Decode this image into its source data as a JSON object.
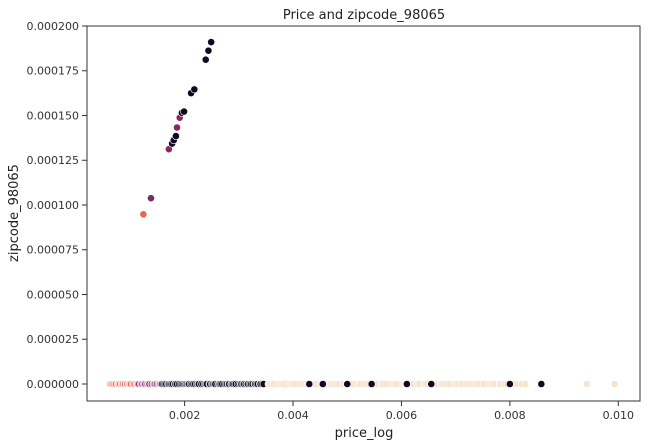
{
  "chart_data": {
    "type": "scatter",
    "title": "Price and zipcode_98065",
    "xlabel": "price_log",
    "ylabel": "zipcode_98065",
    "xlim": [
      0.0002,
      0.0104
    ],
    "ylim": [
      -9.5e-06,
      0.0002
    ],
    "xticks": [
      0.002,
      0.004,
      0.006,
      0.008,
      0.01
    ],
    "xtick_labels": [
      "0.002",
      "0.004",
      "0.006",
      "0.008",
      "0.010"
    ],
    "yticks": [
      0.0,
      2.5e-05,
      5e-05,
      7.5e-05,
      0.0001,
      0.000125,
      0.00015,
      0.000175,
      0.0002
    ],
    "ytick_labels": [
      "0.000000",
      "0.000025",
      "0.000050",
      "0.000075",
      "0.000100",
      "0.000125",
      "0.000150",
      "0.000175",
      "0.000200"
    ],
    "grid": false,
    "colors": {
      "dark": "#10091f",
      "purple": "#6f1f5a",
      "magenta": "#8f2462",
      "orange": "#ec6449",
      "cream": "#f8e2d0"
    },
    "points": [
      {
        "x": 0.00124,
        "y": 9.48e-05,
        "c": "#ec6449"
      },
      {
        "x": 0.00138,
        "y": 0.0001038,
        "c": "#7a2a60"
      },
      {
        "x": 0.00171,
        "y": 0.0001312,
        "c": "#8f2462"
      },
      {
        "x": 0.00177,
        "y": 0.0001343,
        "c": "#10091f"
      },
      {
        "x": 0.0018,
        "y": 0.0001362,
        "c": "#10091f"
      },
      {
        "x": 0.00184,
        "y": 0.0001385,
        "c": "#10091f"
      },
      {
        "x": 0.00186,
        "y": 0.0001433,
        "c": "#8f2462"
      },
      {
        "x": 0.00191,
        "y": 0.0001488,
        "c": "#8f2462"
      },
      {
        "x": 0.00195,
        "y": 0.0001515,
        "c": "#10091f"
      },
      {
        "x": 0.00199,
        "y": 0.0001522,
        "c": "#10091f"
      },
      {
        "x": 0.00212,
        "y": 0.0001625,
        "c": "#10091f"
      },
      {
        "x": 0.00218,
        "y": 0.0001646,
        "c": "#10091f"
      },
      {
        "x": 0.00239,
        "y": 0.0001812,
        "c": "#10091f"
      },
      {
        "x": 0.00244,
        "y": 0.0001862,
        "c": "#10091f"
      },
      {
        "x": 0.00249,
        "y": 0.000191,
        "c": "#10091f"
      },
      {
        "x": 0.0043,
        "y": 0.0,
        "c": "#10091f"
      },
      {
        "x": 0.00455,
        "y": 0.0,
        "c": "#10091f"
      },
      {
        "x": 0.005,
        "y": 0.0,
        "c": "#10091f"
      },
      {
        "x": 0.00545,
        "y": 0.0,
        "c": "#10091f"
      },
      {
        "x": 0.0061,
        "y": 0.0,
        "c": "#10091f"
      },
      {
        "x": 0.00655,
        "y": 0.0,
        "c": "#10091f"
      },
      {
        "x": 0.008,
        "y": 0.0,
        "c": "#10091f"
      },
      {
        "x": 0.00858,
        "y": 0.0,
        "c": "#10091f"
      },
      {
        "x": 0.00942,
        "y": 0.0,
        "c": "#f8e2d0"
      },
      {
        "x": 0.00993,
        "y": 0.0,
        "c": "#f8e2d0"
      }
    ],
    "baseline_bands": [
      {
        "name": "orange",
        "y": 0.0,
        "x_range": [
          0.00062,
          0.00118
        ],
        "color": "#ec6449",
        "count": 30
      },
      {
        "name": "magenta",
        "y": 0.0,
        "x_range": [
          0.00112,
          0.0017
        ],
        "color": "#8f2462",
        "count": 30
      },
      {
        "name": "dark",
        "y": 0.0,
        "x_range": [
          0.00155,
          0.00345
        ],
        "color": "#10091f",
        "count": 75
      },
      {
        "name": "dark-scattered",
        "y": 0.0,
        "x_range": [
          0.00345,
          0.0056
        ],
        "color": "#10091f",
        "count": 28
      },
      {
        "name": "cream",
        "y": 0.0,
        "x_range": [
          0.0035,
          0.0083
        ],
        "color": "#f8e2d0",
        "count": 80
      }
    ]
  }
}
